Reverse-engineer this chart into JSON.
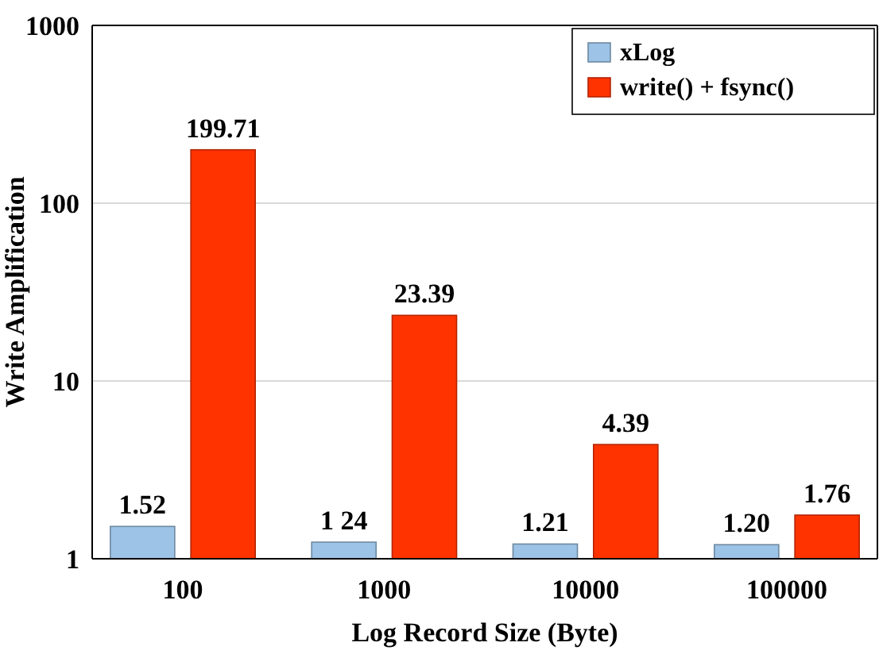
{
  "chart_data": {
    "type": "bar",
    "xlabel": "Log Record Size (Byte)",
    "ylabel": "Write Amplification",
    "categories": [
      "100",
      "1000",
      "10000",
      "100000"
    ],
    "series": [
      {
        "name": "xLog",
        "color": "#9dc3e6",
        "values": [
          1.52,
          1.24,
          1.21,
          1.2
        ],
        "value_labels": [
          "1.52",
          "1 24",
          "1.21",
          "1.20"
        ]
      },
      {
        "name": "write() + fsync()",
        "color": "#ff3300",
        "values": [
          199.71,
          23.39,
          4.39,
          1.76
        ],
        "value_labels": [
          "199.71",
          "23.39",
          "4.39",
          "1.76"
        ]
      }
    ],
    "log": true,
    "ylim": [
      1,
      1000
    ],
    "yticks": [
      1,
      10,
      100,
      1000
    ],
    "grid": "y",
    "legend": "top right"
  }
}
